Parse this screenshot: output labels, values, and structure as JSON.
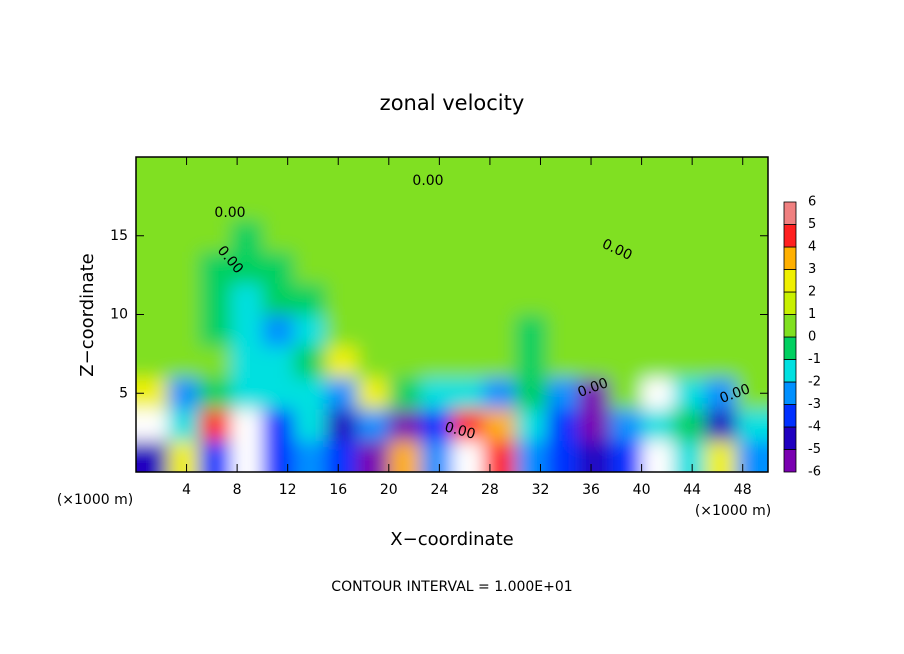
{
  "chart_data": {
    "type": "contour",
    "title": "zonal velocity",
    "x_label": "X−coordinate",
    "y_label": "Z−coordinate",
    "x_unit": "(×1000 m)",
    "footer": "CONTOUR INTERVAL = 1.000E+01",
    "contour_label": "0.00",
    "xlim": [
      0,
      50
    ],
    "ylim": [
      0,
      20
    ],
    "xticks": [
      4,
      8,
      12,
      16,
      20,
      24,
      28,
      32,
      36,
      40,
      44,
      48
    ],
    "yticks": [
      5,
      10,
      15
    ],
    "x": [
      1.25,
      3.75,
      6.25,
      8.75,
      11.25,
      13.75,
      16.25,
      18.75,
      21.25,
      23.75,
      26.25,
      28.75,
      31.25,
      33.75,
      36.25,
      38.75,
      41.25,
      43.75,
      46.25,
      48.75
    ],
    "y": [
      1,
      3,
      5,
      7,
      9,
      11,
      13,
      15,
      17,
      19
    ],
    "z": [
      [
        -4,
        3,
        -3,
        7,
        -3,
        -2,
        -3,
        -5,
        4,
        -2,
        7,
        5,
        -2,
        -3,
        -4,
        -3,
        7,
        -1,
        3,
        -2
      ],
      [
        -7,
        -1,
        5,
        7,
        -3,
        -1,
        -4,
        -2,
        -5,
        -3,
        5,
        4,
        -1,
        -3,
        -6,
        -2,
        -1,
        0,
        -4,
        -1
      ],
      [
        3,
        -2,
        0,
        -1,
        -1,
        -1,
        -2,
        3,
        0,
        -1,
        -1,
        -2,
        0,
        -2,
        -5,
        1,
        7,
        -1,
        -2,
        1
      ],
      [
        1,
        0.5,
        0.5,
        -1,
        -1.5,
        -0.5,
        3,
        1,
        0.5,
        0.5,
        0.5,
        0.5,
        0,
        0.5,
        0.5,
        0.5,
        0.5,
        0.5,
        0.5,
        0.5
      ],
      [
        0.5,
        0.5,
        0,
        -1,
        -2,
        -1,
        1,
        0.5,
        0.5,
        0.5,
        0.5,
        0.5,
        0,
        0.3,
        0.5,
        0.5,
        0.5,
        0.5,
        0.5,
        0.5
      ],
      [
        0.5,
        0.3,
        0,
        -1,
        -0.5,
        0,
        0.3,
        0.5,
        0.5,
        0.5,
        0.5,
        0.5,
        0.5,
        0.5,
        0.5,
        0.5,
        0.5,
        0.5,
        0.5,
        0.5
      ],
      [
        0.5,
        0.3,
        -0.3,
        -0.5,
        0,
        0.3,
        0.5,
        0.5,
        0.5,
        0.5,
        0.5,
        0.5,
        0.5,
        0.5,
        0.5,
        0.5,
        0.5,
        0.5,
        0.5,
        0.5
      ],
      [
        0.3,
        0.3,
        0.3,
        -0.3,
        0.3,
        0.3,
        0.3,
        0.3,
        0.3,
        0.3,
        0.3,
        0.3,
        0.3,
        0.3,
        0.3,
        0.3,
        0.3,
        0.3,
        0.3,
        0.3
      ],
      [
        0.3,
        0.3,
        0.3,
        0.3,
        0.3,
        0.3,
        0.3,
        0.3,
        0.3,
        0.3,
        0.3,
        0.3,
        0.3,
        0.3,
        0.3,
        0.3,
        0.3,
        0.3,
        0.3,
        0.3
      ],
      [
        0.5,
        0.5,
        0.5,
        0.5,
        0.5,
        0.5,
        0.5,
        0.5,
        0.5,
        0.5,
        0.5,
        0.5,
        0.5,
        0.5,
        0.5,
        0.5,
        0.5,
        0.5,
        0.5,
        0.5
      ]
    ],
    "levels": [
      -6,
      -5,
      -4,
      -3,
      -2,
      -1,
      0,
      1,
      2,
      3,
      4,
      5,
      6
    ],
    "colors": [
      "#7a00b0",
      "#2000c0",
      "#0030ff",
      "#0090ff",
      "#00e0e0",
      "#00d060",
      "#80e020",
      "#c8f000",
      "#f0f000",
      "#ffb000",
      "#ff2020",
      "#f08080"
    ],
    "out_of_range_color": "#ffffff"
  }
}
